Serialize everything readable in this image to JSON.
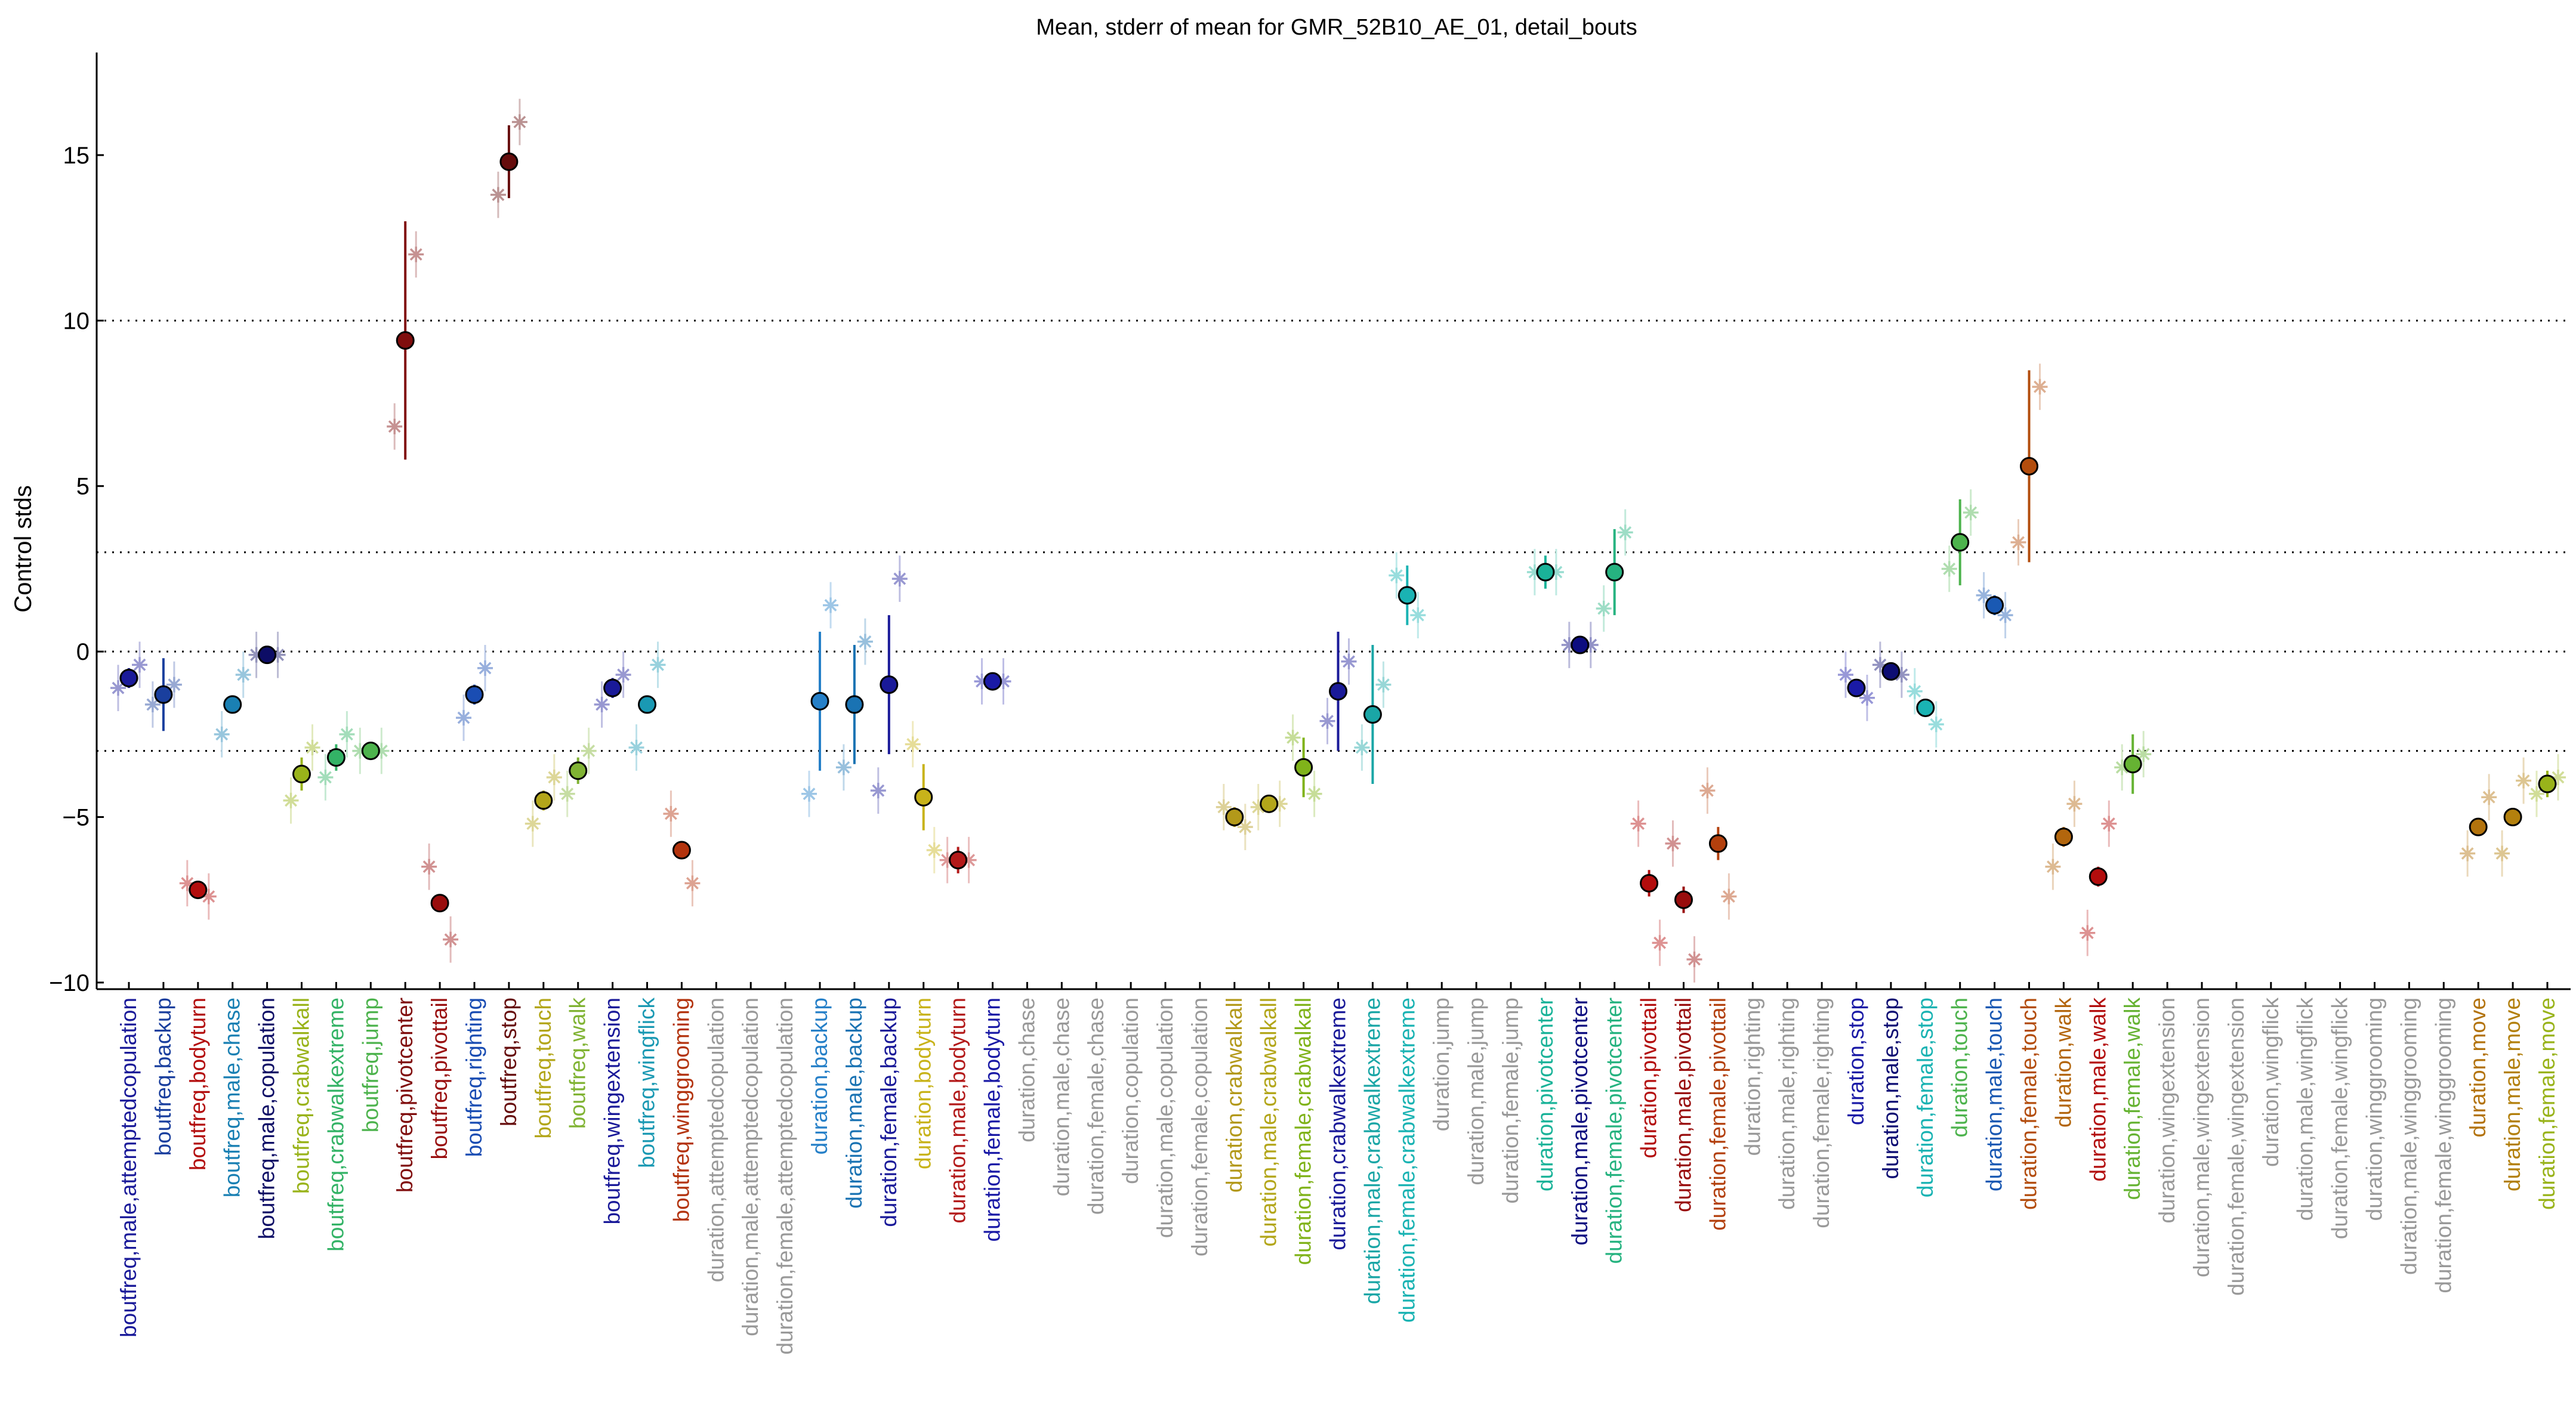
{
  "chart_data": {
    "type": "scatter",
    "title": "Mean, stderr of mean for GMR_52B10_AE_01, detail_bouts",
    "xlabel": "",
    "ylabel": "Control stds",
    "ylim": [
      -10.2,
      18.1
    ],
    "yticks": [
      -10,
      -5,
      0,
      5,
      10,
      15
    ],
    "reference_lines": [
      -3,
      0,
      3,
      10
    ],
    "grid": false,
    "legend": "none",
    "categories": [
      {
        "label": "boutfreq,male,attemptedcopulation",
        "color": "#1a1a99",
        "mean": -0.8,
        "err": 0.3,
        "male": -1.1,
        "female": -0.4
      },
      {
        "label": "boutfreq,backup",
        "color": "#1a3f9e",
        "mean": -1.3,
        "err": 1.1,
        "male": -1.6,
        "female": -1.0
      },
      {
        "label": "boutfreq,bodyturn",
        "color": "#b30d0d",
        "mean": -7.2,
        "err": 0.15,
        "male": -7.0,
        "female": -7.4
      },
      {
        "label": "boutfreq,male,chase",
        "color": "#1a80b3",
        "mean": -1.6,
        "err": 0.2,
        "male": -2.5,
        "female": -0.7
      },
      {
        "label": "boutfreq,male,copulation",
        "color": "#0d0d66",
        "mean": -0.1,
        "err": 0.1,
        "male": -0.1,
        "female": -0.1
      },
      {
        "label": "boutfreq,crabwalkall",
        "color": "#99b31a",
        "mean": -3.7,
        "err": 0.5,
        "male": -4.5,
        "female": -2.9
      },
      {
        "label": "boutfreq,crabwalkextreme",
        "color": "#33b366",
        "mean": -3.2,
        "err": 0.4,
        "male": -3.8,
        "female": -2.5
      },
      {
        "label": "boutfreq,jump",
        "color": "#4db34d",
        "mean": -3.0,
        "err": 0.1,
        "male": -3.0,
        "female": -3.0
      },
      {
        "label": "boutfreq,pivotcenter",
        "color": "#800d0d",
        "mean": 9.4,
        "err": 3.6,
        "male": 6.8,
        "female": 12.0
      },
      {
        "label": "boutfreq,pivottail",
        "color": "#990d0d",
        "mean": -7.6,
        "err": 0.1,
        "male": -6.5,
        "female": -8.7
      },
      {
        "label": "boutfreq,righting",
        "color": "#1a4db3",
        "mean": -1.3,
        "err": 0.3,
        "male": -2.0,
        "female": -0.5
      },
      {
        "label": "boutfreq,stop",
        "color": "#660d0d",
        "mean": 14.8,
        "err": 1.1,
        "male": 13.8,
        "female": 16.0
      },
      {
        "label": "boutfreq,touch",
        "color": "#b3a61a",
        "mean": -4.5,
        "err": 0.3,
        "male": -5.2,
        "female": -3.8
      },
      {
        "label": "boutfreq,walk",
        "color": "#80b333",
        "mean": -3.6,
        "err": 0.4,
        "male": -4.3,
        "female": -3.0
      },
      {
        "label": "boutfreq,wingextension",
        "color": "#1a1a99",
        "mean": -1.1,
        "err": 0.3,
        "male": -1.6,
        "female": -0.7
      },
      {
        "label": "boutfreq,wingflick",
        "color": "#1a99b3",
        "mean": -1.6,
        "err": 0.2,
        "male": -2.9,
        "female": -0.4
      },
      {
        "label": "boutfreq,winggrooming",
        "color": "#b3330d",
        "mean": -6.0,
        "err": 0.1,
        "male": -4.9,
        "female": -7.0
      },
      {
        "label": "duration,attemptedcopulation",
        "color": "#999999",
        "mean": null,
        "err": null,
        "male": null,
        "female": null
      },
      {
        "label": "duration,male,attemptedcopulation",
        "color": "#999999",
        "mean": null,
        "err": null,
        "male": null,
        "female": null
      },
      {
        "label": "duration,female,attemptedcopulation",
        "color": "#999999",
        "mean": null,
        "err": null,
        "male": null,
        "female": null
      },
      {
        "label": "duration,backup",
        "color": "#2680c8",
        "mean": -1.5,
        "err": 2.1,
        "male": -4.3,
        "female": 1.4
      },
      {
        "label": "duration,male,backup",
        "color": "#1a73b3",
        "mean": -1.6,
        "err": 1.8,
        "male": -3.5,
        "female": 0.3
      },
      {
        "label": "duration,female,backup",
        "color": "#1a1a99",
        "mean": -1.0,
        "err": 2.1,
        "male": -4.2,
        "female": 2.2
      },
      {
        "label": "duration,bodyturn",
        "color": "#c8b31a",
        "mean": -4.4,
        "err": 1.0,
        "male": -2.8,
        "female": -6.0
      },
      {
        "label": "duration,male,bodyturn",
        "color": "#b31a1a",
        "mean": -6.3,
        "err": 0.4,
        "male": -6.3,
        "female": -6.3
      },
      {
        "label": "duration,female,bodyturn",
        "color": "#1a1aa6",
        "mean": -0.9,
        "err": 0.2,
        "male": -0.9,
        "female": -0.9
      },
      {
        "label": "duration,chase",
        "color": "#999999",
        "mean": null,
        "err": null,
        "male": null,
        "female": null
      },
      {
        "label": "duration,male,chase",
        "color": "#999999",
        "mean": null,
        "err": null,
        "male": null,
        "female": null
      },
      {
        "label": "duration,female,chase",
        "color": "#999999",
        "mean": null,
        "err": null,
        "male": null,
        "female": null
      },
      {
        "label": "duration,copulation",
        "color": "#999999",
        "mean": null,
        "err": null,
        "male": null,
        "female": null
      },
      {
        "label": "duration,male,copulation",
        "color": "#999999",
        "mean": null,
        "err": null,
        "male": null,
        "female": null
      },
      {
        "label": "duration,female,copulation",
        "color": "#999999",
        "mean": null,
        "err": null,
        "male": null,
        "female": null
      },
      {
        "label": "duration,crabwalkall",
        "color": "#b3991a",
        "mean": -5.0,
        "err": 0.3,
        "male": -4.7,
        "female": -5.3
      },
      {
        "label": "duration,male,crabwalkall",
        "color": "#b3a61a",
        "mean": -4.6,
        "err": 0.2,
        "male": -4.7,
        "female": -4.6
      },
      {
        "label": "duration,female,crabwalkall",
        "color": "#80b31a",
        "mean": -3.5,
        "err": 0.9,
        "male": -2.6,
        "female": -4.3
      },
      {
        "label": "duration,crabwalkextreme",
        "color": "#1a1a99",
        "mean": -1.2,
        "err": 1.8,
        "male": -2.1,
        "female": -0.3
      },
      {
        "label": "duration,male,crabwalkextreme",
        "color": "#1aa6a6",
        "mean": -1.9,
        "err": 2.1,
        "male": -2.9,
        "female": -1.0
      },
      {
        "label": "duration,female,crabwalkextreme",
        "color": "#1ab3b3",
        "mean": 1.7,
        "err": 0.9,
        "male": 2.3,
        "female": 1.1
      },
      {
        "label": "duration,jump",
        "color": "#999999",
        "mean": null,
        "err": null,
        "male": null,
        "female": null
      },
      {
        "label": "duration,male,jump",
        "color": "#999999",
        "mean": null,
        "err": null,
        "male": null,
        "female": null
      },
      {
        "label": "duration,female,jump",
        "color": "#999999",
        "mean": null,
        "err": null,
        "male": null,
        "female": null
      },
      {
        "label": "duration,pivotcenter",
        "color": "#1ab399",
        "mean": 2.4,
        "err": 0.5,
        "male": 2.4,
        "female": 2.4
      },
      {
        "label": "duration,male,pivotcenter",
        "color": "#0d0d80",
        "mean": 0.2,
        "err": 0.2,
        "male": 0.2,
        "female": 0.2
      },
      {
        "label": "duration,female,pivotcenter",
        "color": "#26b380",
        "mean": 2.4,
        "err": 1.3,
        "male": 1.3,
        "female": 3.6
      },
      {
        "label": "duration,pivottail",
        "color": "#b30d0d",
        "mean": -7.0,
        "err": 0.4,
        "male": -5.2,
        "female": -8.8
      },
      {
        "label": "duration,male,pivottail",
        "color": "#990d0d",
        "mean": -7.5,
        "err": 0.4,
        "male": -5.8,
        "female": -9.3
      },
      {
        "label": "duration,female,pivottail",
        "color": "#b3400d",
        "mean": -5.8,
        "err": 0.5,
        "male": -4.2,
        "female": -7.4
      },
      {
        "label": "duration,righting",
        "color": "#999999",
        "mean": null,
        "err": null,
        "male": null,
        "female": null
      },
      {
        "label": "duration,male,righting",
        "color": "#999999",
        "mean": null,
        "err": null,
        "male": null,
        "female": null
      },
      {
        "label": "duration,female,righting",
        "color": "#999999",
        "mean": null,
        "err": null,
        "male": null,
        "female": null
      },
      {
        "label": "duration,stop",
        "color": "#1a1aa6",
        "mean": -1.1,
        "err": 0.2,
        "male": -0.7,
        "female": -1.4
      },
      {
        "label": "duration,male,stop",
        "color": "#0d0d73",
        "mean": -0.6,
        "err": 0.1,
        "male": -0.4,
        "female": -0.7
      },
      {
        "label": "duration,female,stop",
        "color": "#1ab3b3",
        "mean": -1.7,
        "err": 0.2,
        "male": -1.2,
        "female": -2.2
      },
      {
        "label": "duration,touch",
        "color": "#4db34d",
        "mean": 3.3,
        "err": 1.3,
        "male": 2.5,
        "female": 4.2
      },
      {
        "label": "duration,male,touch",
        "color": "#1a59b3",
        "mean": 1.4,
        "err": 0.3,
        "male": 1.7,
        "female": 1.1
      },
      {
        "label": "duration,female,touch",
        "color": "#b34d0d",
        "mean": 5.6,
        "err": 2.9,
        "male": 3.3,
        "female": 8.0
      },
      {
        "label": "duration,walk",
        "color": "#b3660d",
        "mean": -5.6,
        "err": 0.3,
        "male": -6.5,
        "female": -4.6
      },
      {
        "label": "duration,male,walk",
        "color": "#b30d0d",
        "mean": -6.8,
        "err": 0.3,
        "male": -8.5,
        "female": -5.2
      },
      {
        "label": "duration,female,walk",
        "color": "#66b333",
        "mean": -3.4,
        "err": 0.9,
        "male": -3.5,
        "female": -3.1
      },
      {
        "label": "duration,wingextension",
        "color": "#999999",
        "mean": null,
        "err": null,
        "male": null,
        "female": null
      },
      {
        "label": "duration,male,wingextension",
        "color": "#999999",
        "mean": null,
        "err": null,
        "male": null,
        "female": null
      },
      {
        "label": "duration,female,wingextension",
        "color": "#999999",
        "mean": null,
        "err": null,
        "male": null,
        "female": null
      },
      {
        "label": "duration,wingflick",
        "color": "#999999",
        "mean": null,
        "err": null,
        "male": null,
        "female": null
      },
      {
        "label": "duration,male,wingflick",
        "color": "#999999",
        "mean": null,
        "err": null,
        "male": null,
        "female": null
      },
      {
        "label": "duration,female,wingflick",
        "color": "#999999",
        "mean": null,
        "err": null,
        "male": null,
        "female": null
      },
      {
        "label": "duration,winggrooming",
        "color": "#999999",
        "mean": null,
        "err": null,
        "male": null,
        "female": null
      },
      {
        "label": "duration,male,winggrooming",
        "color": "#999999",
        "mean": null,
        "err": null,
        "male": null,
        "female": null
      },
      {
        "label": "duration,female,winggrooming",
        "color": "#999999",
        "mean": null,
        "err": null,
        "male": null,
        "female": null
      },
      {
        "label": "duration,move",
        "color": "#b3730d",
        "mean": -5.3,
        "err": 0.2,
        "male": -6.1,
        "female": -4.4
      },
      {
        "label": "duration,male,move",
        "color": "#b3800d",
        "mean": -5.0,
        "err": 0.2,
        "male": -6.1,
        "female": -3.9
      },
      {
        "label": "duration,female,move",
        "color": "#99b31a",
        "mean": -4.0,
        "err": 0.4,
        "male": -4.3,
        "female": -3.8
      }
    ]
  }
}
